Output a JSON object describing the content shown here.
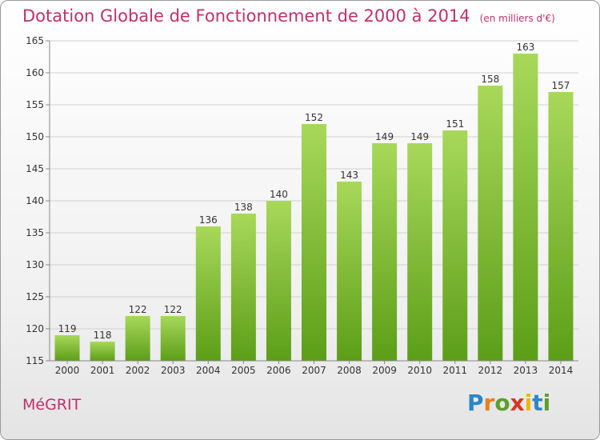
{
  "header": {
    "title": "Dotation Globale de Fonctionnement de 2000 à 2014",
    "unit": "(en milliers d'€)"
  },
  "footer": {
    "commune": "MéGRIT",
    "logo": [
      "P",
      "r",
      "o",
      "x",
      "i",
      "t",
      "i"
    ]
  },
  "colors": {
    "title": "#c0306a",
    "bar_light": "#a8d85a",
    "bar_dark": "#5c9e18",
    "grid": "#d0d0d0"
  },
  "chart_data": {
    "type": "bar",
    "categories": [
      "2000",
      "2001",
      "2002",
      "2003",
      "2004",
      "2005",
      "2006",
      "2007",
      "2008",
      "2009",
      "2010",
      "2011",
      "2012",
      "2013",
      "2014"
    ],
    "values": [
      119,
      118,
      122,
      122,
      136,
      138,
      140,
      152,
      143,
      149,
      149,
      151,
      158,
      163,
      157
    ],
    "ylim": [
      115,
      165
    ],
    "yticks": [
      115,
      120,
      125,
      130,
      135,
      140,
      145,
      150,
      155,
      160,
      165
    ],
    "grid": true,
    "data_labels": true
  }
}
